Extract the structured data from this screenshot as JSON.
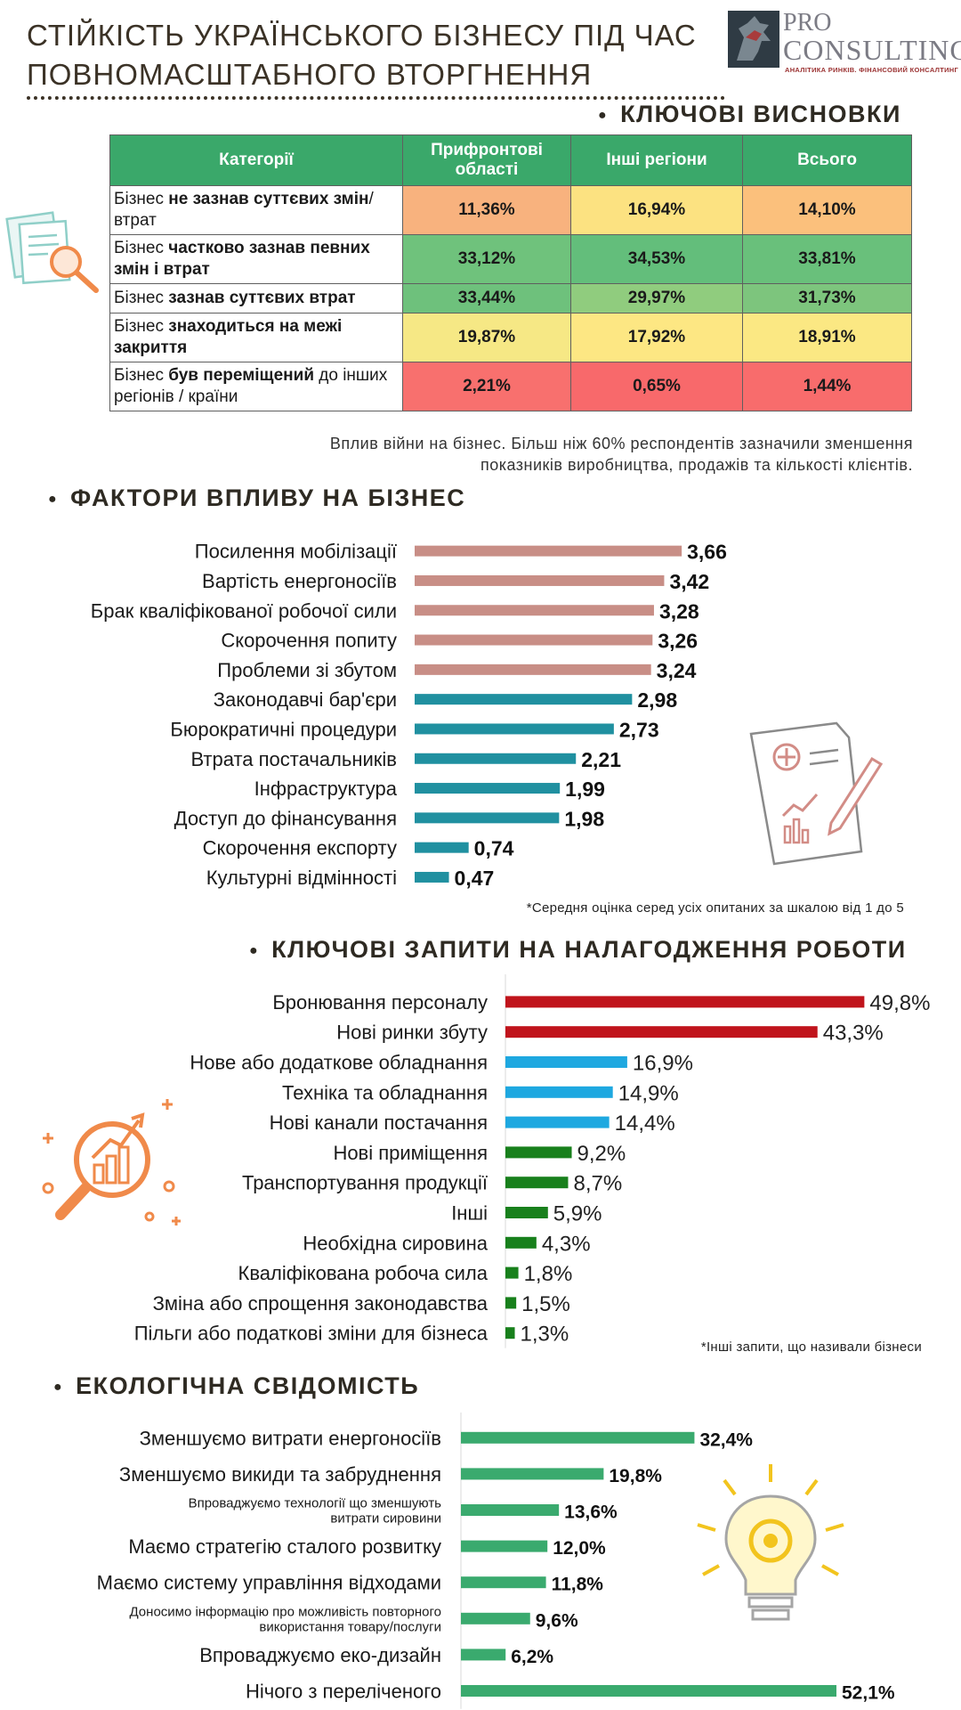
{
  "header": {
    "title_line1": "СТІЙКІСТЬ УКРАЇНСЬКОГО БІЗНЕСУ ПІД ЧАС",
    "title_line2": "ПОВНОМАСШТАБНОГО ВТОРГНЕННЯ",
    "logo_pro": "PRO",
    "logo_consulting": "CONSULTING",
    "logo_tagline": "АНАЛІТИКА РИНКІВ. ФІНАНСОВИЙ КОНСАЛТИНГ"
  },
  "key_findings": {
    "heading": "КЛЮЧОВІ ВИСНОВКИ",
    "columns": [
      "Категорії",
      "Прифронтові області",
      "Інші регіони",
      "Всього"
    ],
    "rows": [
      {
        "pre": "Бізнес ",
        "bold": "не зазнав суттєвих змін",
        "post": "/втрат",
        "values": [
          "11,36%",
          "16,94%",
          "14,10%"
        ],
        "colors": [
          "#f8b27e",
          "#fce281",
          "#fbc07c"
        ]
      },
      {
        "pre": "Бізнес ",
        "bold": "частково зазнав певних змін і втрат",
        "post": "",
        "values": [
          "33,12%",
          "34,53%",
          "33,81%"
        ],
        "colors": [
          "#6fc27c",
          "#63be7b",
          "#69c07b"
        ]
      },
      {
        "pre": "Бізнес ",
        "bold": "зазнав суттєвих втрат",
        "post": "",
        "values": [
          "33,44%",
          "29,97%",
          "31,73%"
        ],
        "colors": [
          "#6ec17c",
          "#90cc7e",
          "#7dc57d"
        ]
      },
      {
        "pre": "Бізнес ",
        "bold": "знаходиться на межі закриття",
        "post": "",
        "values": [
          "19,87%",
          "17,92%",
          "18,91%"
        ],
        "colors": [
          "#f6e885",
          "#fde783",
          "#fbe883"
        ]
      },
      {
        "pre": "Бізнес ",
        "bold": "був переміщений",
        "post": " до інших регіонів / країни",
        "values": [
          "2,21%",
          "0,65%",
          "1,44%"
        ],
        "colors": [
          "#f8706e",
          "#f8696b",
          "#f86c6c"
        ]
      }
    ],
    "note_line1": "Вплив війни на бізнес. Більш ніж 60% респондентів зазначили зменшення",
    "note_line2": "показників виробництва, продажів та кількості клієнтів."
  },
  "chart_data": [
    {
      "type": "bar",
      "orientation": "horizontal",
      "title": "ФАКТОРИ ВПЛИВУ НА БІЗНЕС",
      "categories": [
        "Посилення мобілізації",
        "Вартість енергоносіїв",
        "Брак кваліфікованої робочої сили",
        "Скорочення попиту",
        "Проблеми зі збутом",
        "Законодавчі бар'єри",
        "Бюрократичні процедури",
        "Втрата постачальників",
        "Інфраструктура",
        "Доступ до фінансування",
        "Скорочення експорту",
        "Культурні відмінності"
      ],
      "values": [
        3.66,
        3.42,
        3.28,
        3.26,
        3.24,
        2.98,
        2.73,
        2.21,
        1.99,
        1.98,
        0.74,
        0.47
      ],
      "labels": [
        "3,66",
        "3,42",
        "3,28",
        "3,26",
        "3,24",
        "2,98",
        "2,73",
        "2,21",
        "1,99",
        "1,98",
        "0,74",
        "0,47"
      ],
      "colors": [
        "#c88e86",
        "#c88e86",
        "#c88e86",
        "#c88e86",
        "#c88e86",
        "#2090a0",
        "#2090a0",
        "#2090a0",
        "#2090a0",
        "#2090a0",
        "#2090a0",
        "#2090a0"
      ],
      "footnote": "*Середня оцінка серед усіх опитаних за шкалою від 1 до 5"
    },
    {
      "type": "bar",
      "orientation": "horizontal",
      "title": "КЛЮЧОВІ ЗАПИТИ НА НАЛАГОДЖЕННЯ РОБОТИ",
      "categories": [
        "Бронювання персоналу",
        "Нові ринки збуту",
        "Нове або додаткове обладнання",
        "Техніка та обладнання",
        "Нові канали постачання",
        "Нові приміщення",
        "Транспортування продукції",
        "Інші",
        "Необхідна сировина",
        "Кваліфікована робоча сила",
        "Зміна або спрощення законодавства",
        "Пільги або податкові зміни для бізнеса"
      ],
      "values": [
        49.8,
        43.3,
        16.9,
        14.9,
        14.4,
        9.2,
        8.7,
        5.9,
        4.3,
        1.8,
        1.5,
        1.3
      ],
      "labels": [
        "49,8%",
        "43,3%",
        "16,9%",
        "14,9%",
        "14,4%",
        "9,2%",
        "8,7%",
        "5,9%",
        "4,3%",
        "1,8%",
        "1,5%",
        "1,3%"
      ],
      "colors": [
        "#c0141c",
        "#c0141c",
        "#1ea8e0",
        "#1ea8e0",
        "#1ea8e0",
        "#18801c",
        "#18801c",
        "#18801c",
        "#18801c",
        "#18801c",
        "#18801c",
        "#18801c"
      ],
      "footnote": "*Інші запити, що називали бізнеси"
    },
    {
      "type": "bar",
      "orientation": "horizontal",
      "title": "ЕКОЛОГІЧНА СВІДОМІСТЬ",
      "categories": [
        [
          "Зменшуємо витрати енергоносіїв"
        ],
        [
          "Зменшуємо викиди та забруднення"
        ],
        [
          "Впроваджуємо технології що зменшують",
          "витрати сировини"
        ],
        [
          "Маємо стратегію сталого розвитку"
        ],
        [
          "Маємо систему управління відходами"
        ],
        [
          "Доносимо інформацію про можливість повторного",
          "використання товару/послуги"
        ],
        [
          "Впроваджуємо еко-дизайн"
        ],
        [
          "Нічого з переліченого"
        ]
      ],
      "values": [
        32.4,
        19.8,
        13.6,
        12.0,
        11.8,
        9.6,
        6.2,
        52.1
      ],
      "labels": [
        "32,4%",
        "19,8%",
        "13,6%",
        "12,0%",
        "11,8%",
        "9,6%",
        "6,2%",
        "52,1%"
      ],
      "colors": [
        "#3aaa6e",
        "#3aaa6e",
        "#3aaa6e",
        "#3aaa6e",
        "#3aaa6e",
        "#3aaa6e",
        "#3aaa6e",
        "#3aaa6e"
      ]
    }
  ]
}
